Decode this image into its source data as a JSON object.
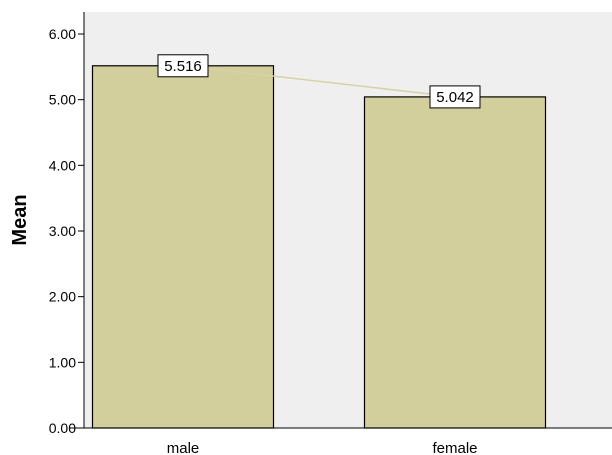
{
  "chart_data": {
    "type": "bar",
    "categories": [
      "male",
      "female"
    ],
    "values": [
      5.516,
      5.042
    ],
    "data_labels": [
      "5.516",
      "5.042"
    ],
    "title": "",
    "xlabel": "",
    "ylabel": "Mean",
    "ylim": [
      0,
      6.0
    ],
    "yticks": [
      0.0,
      1.0,
      2.0,
      3.0,
      4.0,
      5.0,
      6.0
    ],
    "ytick_labels": [
      "0.00",
      "1.00",
      "2.00",
      "3.00",
      "4.00",
      "5.00",
      "6.00"
    ],
    "grid": false,
    "legend": "none",
    "connector_line": true,
    "colors": {
      "bar_fill": "#d3cf9c",
      "bar_stroke": "#000000",
      "plot_background": "#efefef",
      "connector": "#d8d2a6",
      "label_box_fill": "#ffffff"
    }
  }
}
